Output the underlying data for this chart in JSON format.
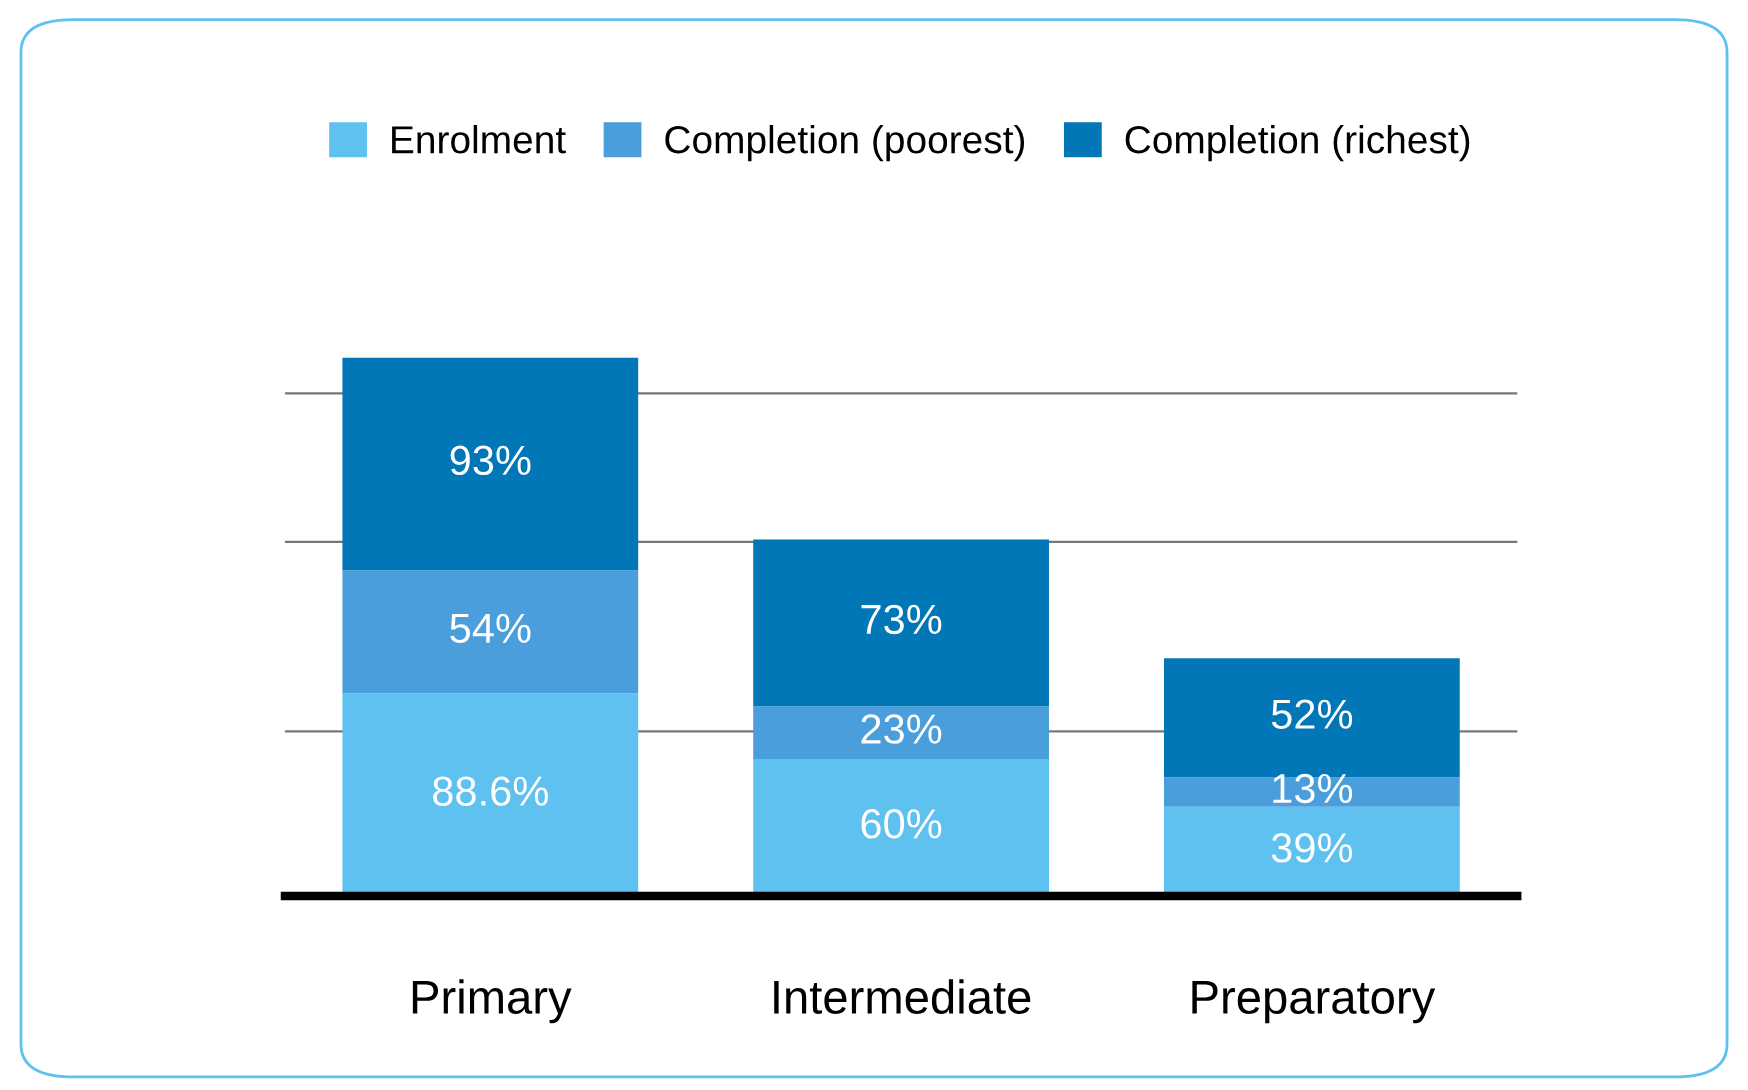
{
  "chart_data": {
    "type": "bar",
    "stacked": true,
    "categories": [
      "Primary",
      "Intermediate",
      "Preparatory"
    ],
    "series": [
      {
        "name": "Enrolment",
        "color": "#5ec1ef",
        "values": [
          88.6,
          60,
          39
        ],
        "value_labels": [
          "88.6%",
          "60%",
          "39%"
        ]
      },
      {
        "name": "Completion (poorest)",
        "color": "#4a9edb",
        "values": [
          54,
          23,
          13
        ],
        "value_labels": [
          "54%",
          "23%",
          "13%"
        ]
      },
      {
        "name": "Completion (richest)",
        "color": "#0177b8",
        "values": [
          93,
          73,
          52
        ],
        "value_labels": [
          "93%",
          "73%",
          "52%"
        ]
      }
    ],
    "yticks": [
      {
        "value": 72,
        "label": null
      },
      {
        "value": 155,
        "label": null
      },
      {
        "value": 220,
        "label": null
      }
    ],
    "grid": "y",
    "legend": "top",
    "tick_labels": "x"
  }
}
